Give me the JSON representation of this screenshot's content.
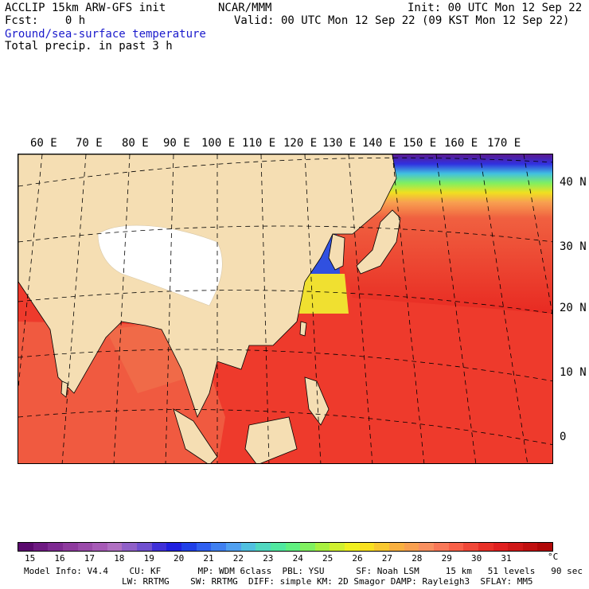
{
  "header": {
    "line1_left": "ACCLIP 15km ARW-GFS init",
    "line1_center": "NCAR/MMM",
    "line1_right": "Init: 00 UTC Mon 12 Sep 22",
    "line2_left": "Fcst:    0 h",
    "line2_right": "Valid: 00 UTC Mon 12 Sep 22 (09 KST Mon 12 Sep 22)",
    "field1": "Ground/sea-surface temperature",
    "field1_color": "#1a1acc",
    "field2": "Total precip. in past 3 h"
  },
  "map": {
    "lon_labels": [
      "60 E",
      "70 E",
      "80 E",
      "90 E",
      "100 E",
      "110 E",
      "120 E",
      "130 E",
      "140 E",
      "150 E",
      "160 E",
      "170 E"
    ],
    "lat_labels": [
      "40 N",
      "30 N",
      "20 N",
      "10 N",
      "0"
    ]
  },
  "colorbar": {
    "unit": "°C",
    "ticks": [
      "15",
      "16",
      "17",
      "18",
      "19",
      "20",
      "21",
      "22",
      "23",
      "24",
      "25",
      "26",
      "27",
      "28",
      "29",
      "30",
      "31"
    ],
    "colors": [
      "#5a0a6e",
      "#6e1a82",
      "#7e2a92",
      "#8e3a9e",
      "#9a4aaa",
      "#a65ab6",
      "#b070c2",
      "#9060c8",
      "#7050d0",
      "#4030d8",
      "#2020e0",
      "#2040e8",
      "#3060f0",
      "#4080f0",
      "#50a0f0",
      "#50c0e0",
      "#50d8c0",
      "#50e8a0",
      "#60f080",
      "#80f060",
      "#a8f040",
      "#d0f030",
      "#f0f020",
      "#f8e020",
      "#f8c830",
      "#f8b040",
      "#f8a050",
      "#f89060",
      "#f87858",
      "#f86048",
      "#f04838",
      "#e83028",
      "#e02020",
      "#d01818",
      "#c01010",
      "#b00808"
    ]
  },
  "footer": {
    "line1": "Model Info: V4.4    CU: KF       MP: WDM 6class  PBL: YSU      SF: Noah LSM     15 km   51 levels   90 sec",
    "line2": "LW: RRTMG    SW: RRTMG  DIFF: simple KM: 2D Smagor DAMP: Rayleigh3  SFLAY: MM5"
  }
}
